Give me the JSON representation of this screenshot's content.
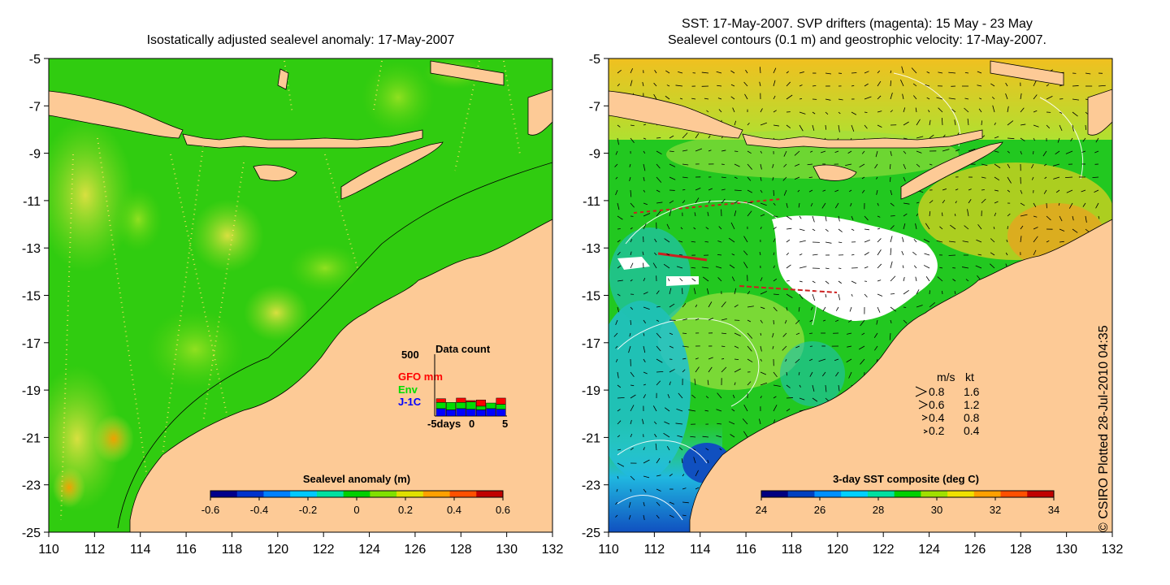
{
  "left_panel": {
    "title": "Isostatically adjusted sealevel anomaly: 17-May-2007",
    "colorbar": {
      "label": "Sealevel anomaly (m)",
      "ticks": [
        "-0.6",
        "-0.4",
        "-0.2",
        "0",
        "0.2",
        "0.4",
        "0.6"
      ],
      "colors": [
        "#00008b",
        "#0033cc",
        "#0080ff",
        "#00c8ff",
        "#00e0a0",
        "#00d000",
        "#80e000",
        "#e0e000",
        "#ffa000",
        "#ff5000",
        "#c00000"
      ]
    },
    "inset": {
      "title": "Data count",
      "ymax_label": "500",
      "legend": [
        {
          "label": "GFO mm",
          "color": "#ff0000"
        },
        {
          "label": "Env",
          "color": "#00dd00"
        },
        {
          "label": "J-1C",
          "color": "#0000ff"
        }
      ],
      "x_labels": [
        "-5days",
        "0",
        "5"
      ],
      "bars": [
        {
          "j1": 0.12,
          "env": 0.1,
          "gfo": 0.06
        },
        {
          "j1": 0.1,
          "env": 0.12,
          "gfo": 0.0
        },
        {
          "j1": 0.12,
          "env": 0.1,
          "gfo": 0.07
        },
        {
          "j1": 0.11,
          "env": 0.12,
          "gfo": 0.02
        },
        {
          "j1": 0.1,
          "env": 0.06,
          "gfo": 0.1
        },
        {
          "j1": 0.12,
          "env": 0.09,
          "gfo": 0.0
        },
        {
          "j1": 0.11,
          "env": 0.08,
          "gfo": 0.1
        }
      ]
    }
  },
  "right_panel": {
    "title_line1": "SST: 17-May-2007. SVP drifters (magenta): 15 May - 23 May",
    "title_line2": "Sealevel contours (0.1 m) and geostrophic velocity: 17-May-2007.",
    "colorbar": {
      "label": "3-day SST composite (deg C)",
      "ticks": [
        "24",
        "26",
        "28",
        "30",
        "32",
        "34"
      ],
      "colors": [
        "#000080",
        "#0040c0",
        "#0090ff",
        "#00d0ff",
        "#00e0a0",
        "#00d000",
        "#a0e000",
        "#f0e000",
        "#ffa000",
        "#ff5000",
        "#c00000"
      ]
    },
    "speed_legend": {
      "header_ms": "m/s",
      "header_kt": "kt",
      "rows": [
        {
          "ms": "0.8",
          "kt": "1.6"
        },
        {
          "ms": "0.6",
          "kt": "1.2"
        },
        {
          "ms": "0.4",
          "kt": "0.8"
        },
        {
          "ms": "0.2",
          "kt": "0.4"
        }
      ]
    }
  },
  "axes": {
    "x_ticks": [
      "110",
      "112",
      "114",
      "116",
      "118",
      "120",
      "122",
      "124",
      "126",
      "128",
      "130",
      "132"
    ],
    "y_ticks": [
      "-5",
      "-7",
      "-9",
      "-11",
      "-13",
      "-15",
      "-17",
      "-19",
      "-21",
      "-23",
      "-25"
    ],
    "lon_range": [
      110,
      132
    ],
    "lat_range": [
      -25,
      -5
    ]
  },
  "credit": "© CSIRO Plotted 28-Jul-2010 04:35",
  "colors": {
    "land": "#fdca96",
    "ocean_green": "#22cc10",
    "ocean_lightgreen": "#88dd20",
    "ocean_yellowgreen": "#c0e030",
    "sst_cyan": "#20c8e0",
    "sst_blue": "#1060d0",
    "cloud": "#ffffff"
  }
}
